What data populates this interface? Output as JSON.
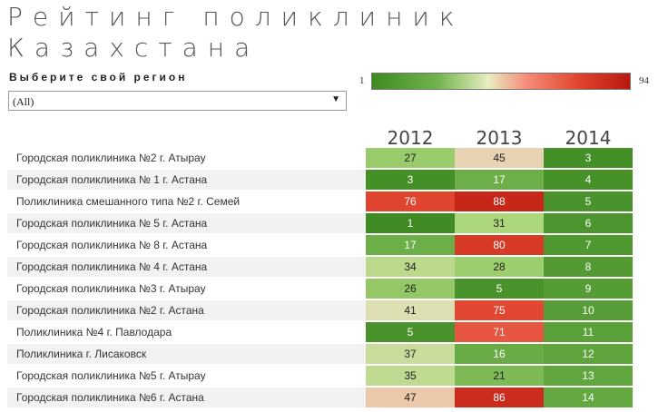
{
  "title": "Рейтинг поликлиник Казахстана",
  "filter": {
    "label": "Выберите свой регион",
    "value": "(All)"
  },
  "legend": {
    "min": "1",
    "max": "94",
    "colors": [
      "#3f8a22",
      "#6fb24a",
      "#e8edc0",
      "#f58c78",
      "#e0452f",
      "#b8180e"
    ]
  },
  "chart_data": {
    "type": "heatmap",
    "columns": [
      "2012",
      "2013",
      "2014"
    ],
    "value_range": [
      1,
      94
    ],
    "rows": [
      {
        "name": "Городская поликлиника №2 г. Атырау",
        "values": [
          27,
          45,
          3
        ]
      },
      {
        "name": "Городская поликлиника № 1 г. Астана",
        "values": [
          3,
          17,
          4
        ]
      },
      {
        "name": "Поликлиника смешанного типа №2 г. Семей",
        "values": [
          76,
          88,
          5
        ]
      },
      {
        "name": "Городская поликлиника № 5 г. Астана",
        "values": [
          1,
          31,
          6
        ]
      },
      {
        "name": "Городская поликлиника № 8 г. Астана",
        "values": [
          17,
          80,
          7
        ]
      },
      {
        "name": "Городская поликлиника № 4 г. Астана",
        "values": [
          34,
          28,
          8
        ]
      },
      {
        "name": "Городская поликлиника №3 г. Атырау",
        "values": [
          26,
          5,
          9
        ]
      },
      {
        "name": "Городская поликлиника №2 г. Астана",
        "values": [
          41,
          75,
          10
        ]
      },
      {
        "name": "Поликлиника №4 г. Павлодара",
        "values": [
          5,
          71,
          11
        ]
      },
      {
        "name": "Поликлиника г. Лисаковск",
        "values": [
          37,
          16,
          12
        ]
      },
      {
        "name": "Городская поликлиника №5 г. Атырау",
        "values": [
          35,
          21,
          13
        ]
      },
      {
        "name": "Городская поликлиника №6 г. Астана",
        "values": [
          47,
          86,
          14
        ]
      }
    ]
  }
}
